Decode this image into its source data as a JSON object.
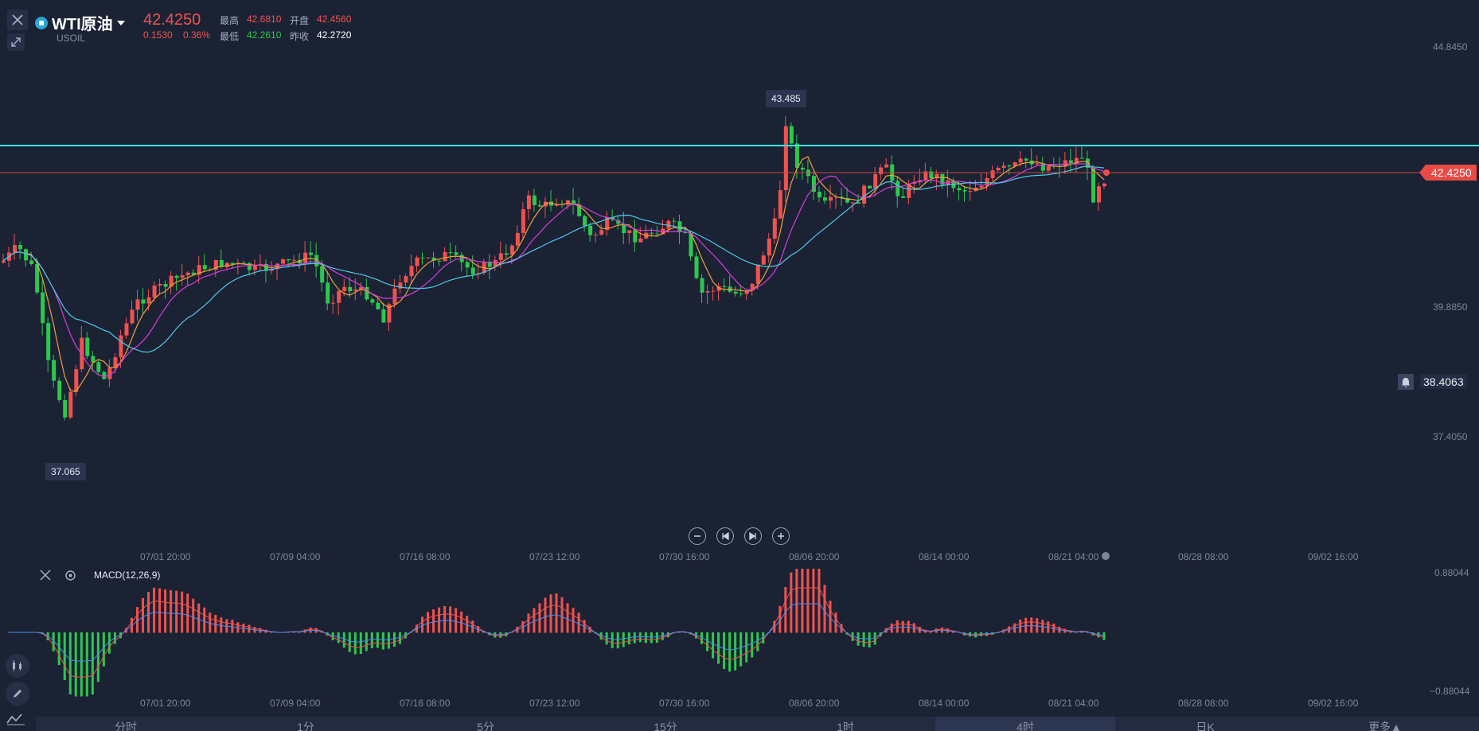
{
  "header": {
    "symbol_name": "WTI原油",
    "symbol_code": "USOIL",
    "price": "42.4250",
    "change": "0.1530",
    "change_pct": "0.36%",
    "high_label": "最高",
    "high_value": "42.6810",
    "open_label": "开盘",
    "open_value": "42.4560",
    "low_label": "最低",
    "low_value": "42.2610",
    "prev_close_label": "昨收",
    "prev_close_value": "42.2720"
  },
  "price_axis": {
    "top": "44.8450",
    "mid": "39.8850",
    "low": "37.4050",
    "current_price_tag": "42.4250",
    "alert_price": "38.4063"
  },
  "markers": {
    "high_marker": "43.485",
    "low_marker": "37.065"
  },
  "time_axis": [
    "07/01 20:00",
    "07/09 04:00",
    "07/16 08:00",
    "07/23 12:00",
    "07/30 16:00",
    "08/06 20:00",
    "08/14 00:00",
    "08/21 04:00",
    "08/28 08:00",
    "09/02 16:00"
  ],
  "macd": {
    "label": "MACD(12,26,9)",
    "axis_top": "0.88044",
    "axis_bottom": "−0.88044"
  },
  "timeframes": [
    "分时",
    "1分",
    "5分",
    "15分",
    "1时",
    "4时",
    "日K",
    "更多▲"
  ],
  "active_timeframe_index": 5,
  "colors": {
    "background": "#1b2234",
    "up": "#f0524f",
    "down": "#2cc84d",
    "resistance_line": "#2ee6f0",
    "price_line": "#c8453f",
    "ma_orange": "#f0a03c",
    "ma_magenta": "#d83cdc",
    "ma_cyan": "#4fc8e8",
    "macd_dif": "#f0524f",
    "macd_dea": "#4a8cf0"
  },
  "chart_data": {
    "type": "candlestick",
    "price_range": [
      36.5,
      44.9
    ],
    "resistance_level": 42.93,
    "current_price": 42.425,
    "high": 43.485,
    "low": 37.065,
    "visible_candles": 198
  }
}
